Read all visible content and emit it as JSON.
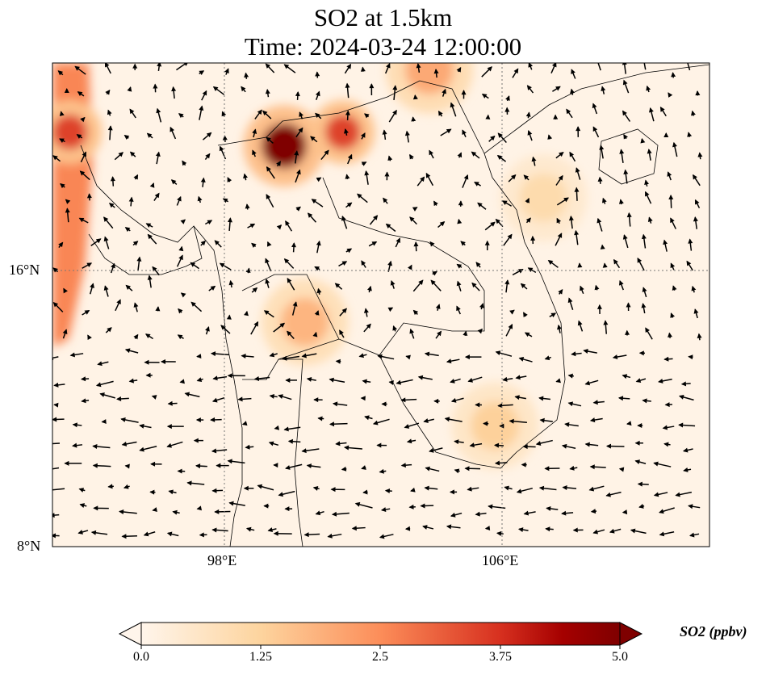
{
  "title": {
    "line1": "SO2 at 1.5km",
    "line2": "Time: 2024-03-24 12:00:00"
  },
  "axes": {
    "lat_ticks": [
      "16°N",
      "8°N"
    ],
    "lon_ticks": [
      "98°E",
      "106°E"
    ],
    "lon_range": [
      93,
      112
    ],
    "lat_range": [
      8,
      22
    ]
  },
  "colorbar": {
    "label": "SO2 (ppbv)",
    "ticks": [
      "0.0",
      "1.25",
      "2.5",
      "3.75",
      "5.0"
    ],
    "range": [
      0,
      5
    ],
    "extend": "both",
    "colormap": [
      "#fff5eb",
      "#fdd49e",
      "#fc8d59",
      "#d7301f",
      "#7f0000"
    ]
  },
  "chart_data": {
    "type": "heatmap",
    "variable": "SO2",
    "units": "ppbv",
    "level": "1.5km",
    "hotspots": [
      {
        "lon": 99.7,
        "lat": 19.6,
        "value": 5.0
      },
      {
        "lon": 101.4,
        "lat": 20.0,
        "value": 3.5
      },
      {
        "lon": 93.5,
        "lat": 20.0,
        "value": 3.5
      },
      {
        "lon": 103.9,
        "lat": 21.8,
        "value": 2.0
      },
      {
        "lon": 100.3,
        "lat": 14.5,
        "value": 1.8
      },
      {
        "lon": 105.8,
        "lat": 11.5,
        "value": 1.3
      },
      {
        "lon": 107.2,
        "lat": 18.1,
        "value": 1.0
      }
    ]
  }
}
